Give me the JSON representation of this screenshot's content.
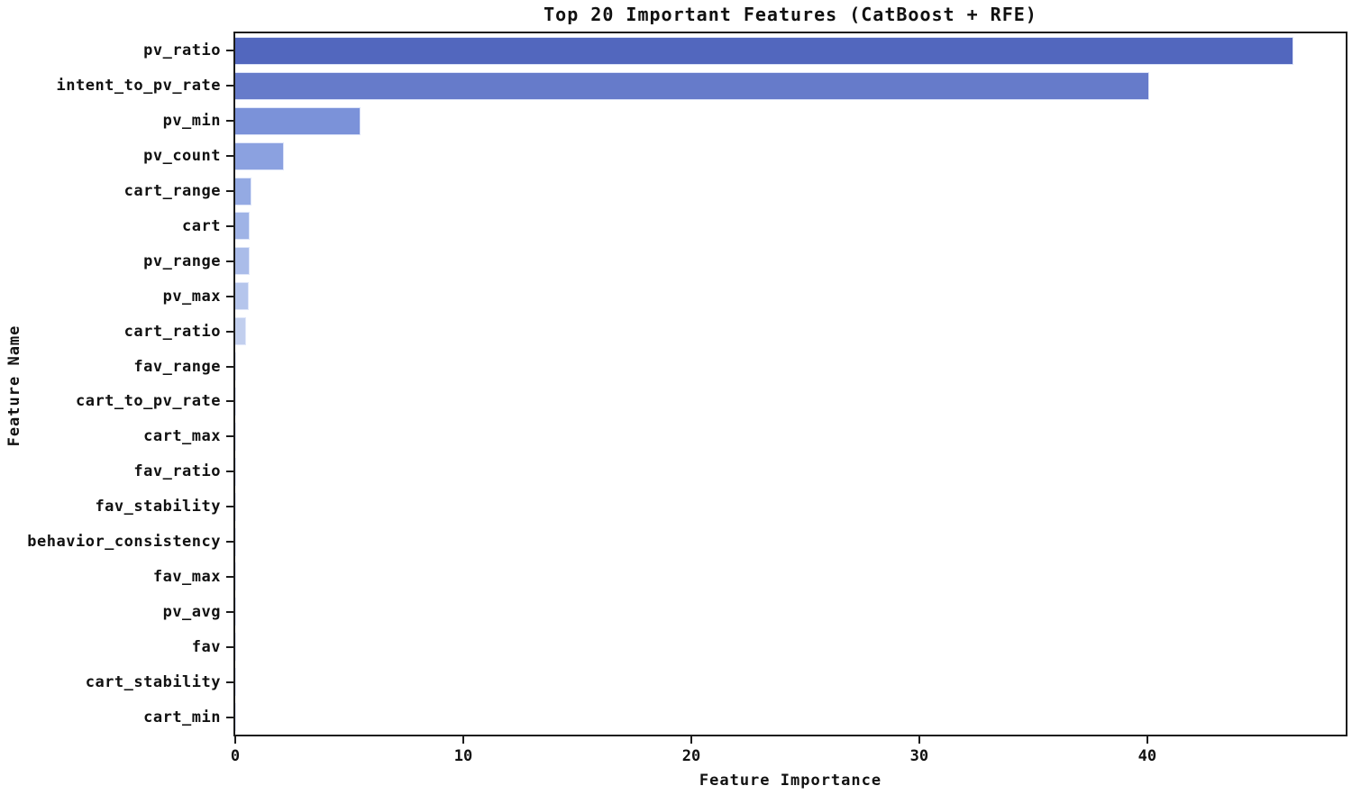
{
  "chart_data": {
    "type": "bar",
    "orientation": "horizontal",
    "title": "Top 20 Important Features (CatBoost + RFE)",
    "xlabel": "Feature Importance",
    "ylabel": "Feature Name",
    "categories": [
      "pv_ratio",
      "intent_to_pv_rate",
      "pv_min",
      "pv_count",
      "cart_range",
      "cart",
      "pv_range",
      "pv_max",
      "cart_ratio",
      "fav_range",
      "cart_to_pv_rate",
      "cart_max",
      "fav_ratio",
      "fav_stability",
      "behavior_consistency",
      "fav_max",
      "pv_avg",
      "fav",
      "cart_stability",
      "cart_min"
    ],
    "values": [
      46.4,
      40.1,
      5.48,
      2.13,
      0.71,
      0.65,
      0.63,
      0.58,
      0.48,
      0.05,
      0.04,
      0.035,
      0.03,
      0.025,
      0.02,
      0.015,
      0.012,
      0.01,
      0.008,
      0.005
    ],
    "bar_colors": [
      "#5267be",
      "#667bca",
      "#7b92d9",
      "#8ba1e0",
      "#94aae3",
      "#9fb3e6",
      "#aabce9",
      "#b5c5ec",
      "#c2cfee",
      "#c9d4f0",
      "#cdd7f1",
      "#d1daf2",
      "#d5ddf3",
      "#d8dff4",
      "#dbe1f4",
      "#dde3f5",
      "#dfe5f5",
      "#e1e6f6",
      "#e3e8f6",
      "#e5e9f7"
    ],
    "xlim": [
      0,
      48.7
    ],
    "xticks": [
      0,
      10,
      20,
      30,
      40
    ],
    "grid": false,
    "legend": null,
    "frame_color": "#1c1c1c",
    "background_color": "#ffffff"
  }
}
